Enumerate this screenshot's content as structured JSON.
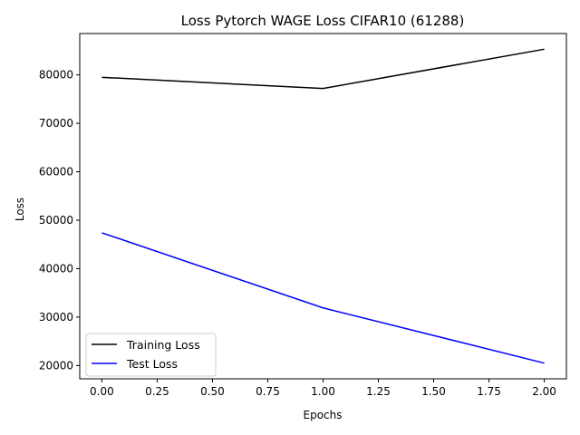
{
  "chart_data": {
    "type": "line",
    "title": "Loss Pytorch WAGE Loss CIFAR10 (61288)",
    "xlabel": "Epochs",
    "ylabel": "Loss",
    "x": [
      0,
      1,
      2
    ],
    "series": [
      {
        "name": "Training Loss",
        "color": "#000000",
        "values": [
          79500,
          77200,
          85300
        ]
      },
      {
        "name": "Test Loss",
        "color": "#0000ff",
        "values": [
          47400,
          31900,
          20500
        ]
      }
    ],
    "xlim": [
      -0.1,
      2.1
    ],
    "ylim": [
      17260,
      88540
    ],
    "xticks": [
      0.0,
      0.25,
      0.5,
      0.75,
      1.0,
      1.25,
      1.5,
      1.75,
      2.0
    ],
    "xtick_labels": [
      "0.00",
      "0.25",
      "0.50",
      "0.75",
      "1.00",
      "1.25",
      "1.50",
      "1.75",
      "2.00"
    ],
    "yticks": [
      20000,
      30000,
      40000,
      50000,
      60000,
      70000,
      80000
    ],
    "ytick_labels": [
      "20000",
      "30000",
      "40000",
      "50000",
      "60000",
      "70000",
      "80000"
    ],
    "grid": false,
    "legend_position": "lower-left"
  }
}
